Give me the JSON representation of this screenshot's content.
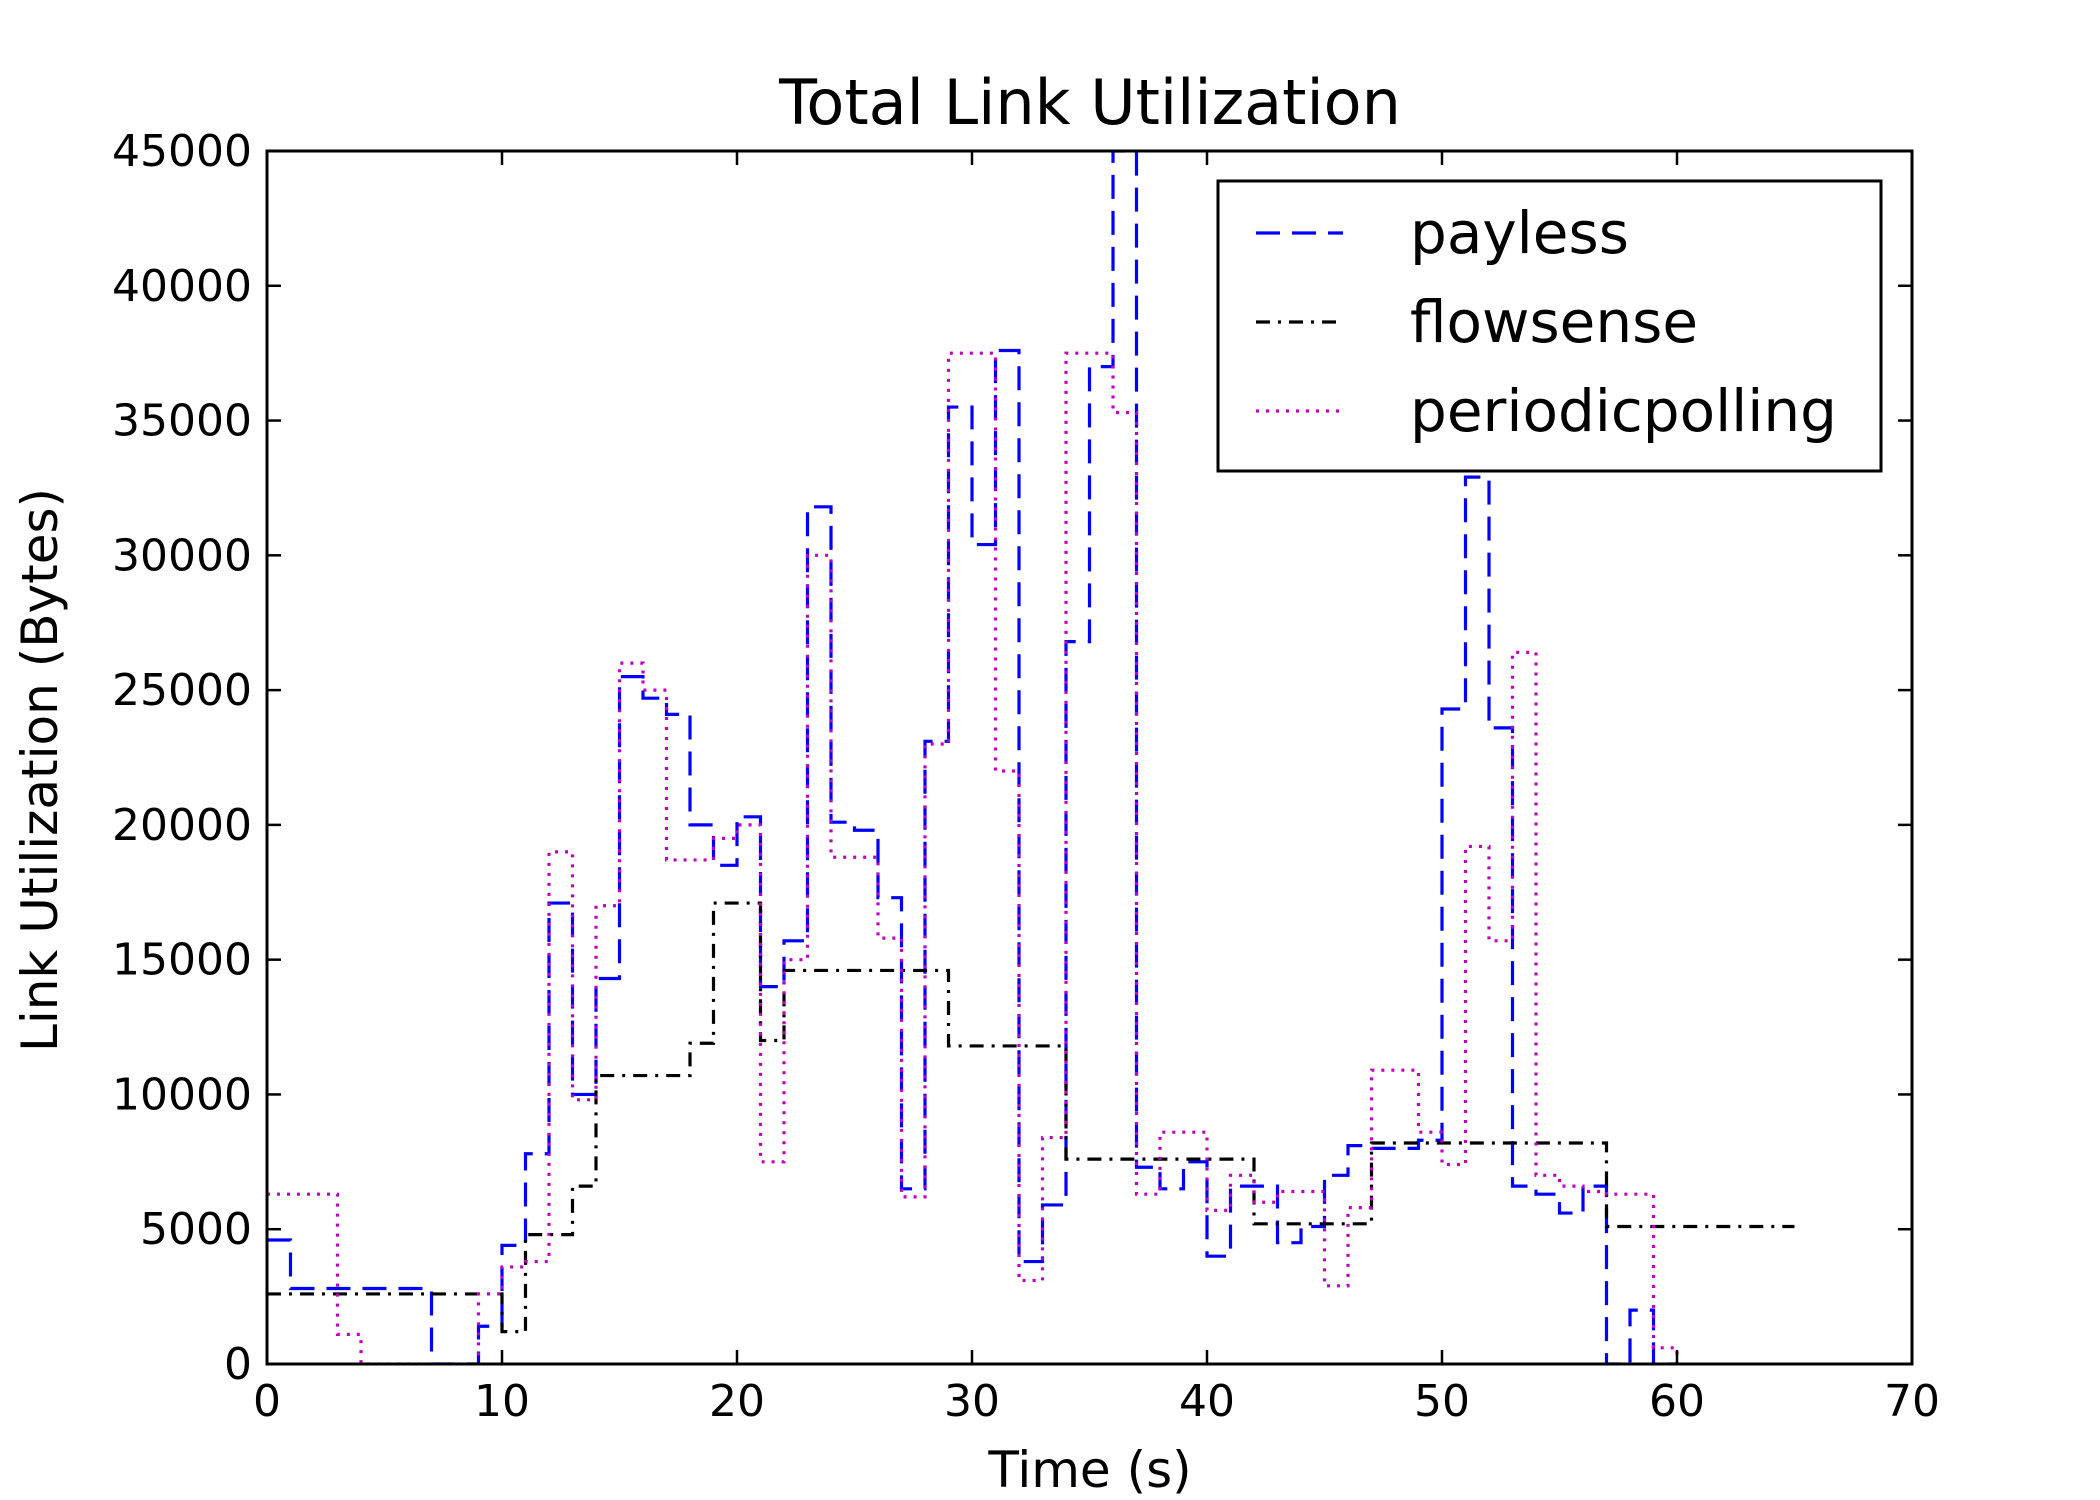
{
  "chart_data": {
    "type": "line",
    "title": "Total Link Utilization",
    "xlabel": "Time (s)",
    "ylabel": "Link Utilization (Bytes)",
    "xlim": [
      0,
      70
    ],
    "ylim": [
      0,
      45000
    ],
    "xticks": [
      0,
      10,
      20,
      30,
      40,
      50,
      60,
      70
    ],
    "yticks": [
      0,
      5000,
      10000,
      15000,
      20000,
      25000,
      30000,
      35000,
      40000,
      45000
    ],
    "grid": false,
    "legend_position": "top-right",
    "step": true,
    "series": [
      {
        "name": "payless",
        "color": "#0000ff",
        "dash": "dashed",
        "x": [
          0,
          1,
          2,
          3,
          4,
          5,
          6,
          7,
          8,
          9,
          10,
          11,
          12,
          13,
          14,
          15,
          16,
          17,
          18,
          19,
          20,
          21,
          22,
          23,
          24,
          25,
          26,
          27,
          28,
          29,
          30,
          31,
          32,
          33,
          34,
          35,
          36,
          37,
          38,
          39,
          40,
          41,
          42,
          43,
          44,
          45,
          46,
          47,
          48,
          49,
          50,
          51,
          52,
          53,
          54,
          55,
          56,
          57,
          58,
          59,
          60
        ],
        "y": [
          4600,
          2800,
          2800,
          2800,
          2800,
          2800,
          2800,
          0,
          0,
          1400,
          4400,
          7800,
          17100,
          10000,
          14300,
          25500,
          24700,
          24100,
          20000,
          18500,
          20300,
          14000,
          15700,
          31800,
          20100,
          19800,
          17300,
          6500,
          23100,
          35500,
          30400,
          37600,
          3800,
          5900,
          26800,
          37000,
          45000,
          7300,
          6500,
          7500,
          4000,
          6600,
          6600,
          4500,
          5100,
          7000,
          8100,
          8000,
          8000,
          8300,
          24300,
          32900,
          23600,
          6600,
          6300,
          5600,
          6600,
          0,
          2000,
          0,
          0
        ]
      },
      {
        "name": "flowsense",
        "color": "#000000",
        "dash": "dashdot",
        "x": [
          0,
          7,
          8,
          9,
          10,
          11,
          12,
          13,
          14,
          18,
          19,
          20,
          21,
          22,
          29,
          34,
          42,
          43,
          46,
          47,
          57,
          65
        ],
        "y": [
          2600,
          2600,
          2600,
          2600,
          1200,
          4800,
          4800,
          6600,
          10700,
          11900,
          17100,
          17100,
          12000,
          14600,
          11800,
          7600,
          5200,
          5200,
          5200,
          8200,
          5100,
          5100
        ]
      },
      {
        "name": "periodicpolling",
        "color": "#bf00bf",
        "dash": "dotted",
        "x": [
          0,
          1,
          2,
          3,
          4,
          5,
          6,
          7,
          8,
          9,
          10,
          11,
          12,
          13,
          14,
          15,
          16,
          17,
          18,
          19,
          20,
          21,
          22,
          23,
          24,
          25,
          26,
          27,
          28,
          29,
          30,
          31,
          32,
          33,
          34,
          35,
          36,
          37,
          38,
          39,
          40,
          41,
          42,
          43,
          44,
          45,
          46,
          47,
          48,
          49,
          50,
          51,
          52,
          53,
          54,
          55,
          56,
          57,
          58,
          59,
          60
        ],
        "y": [
          6300,
          6300,
          6300,
          1100,
          0,
          0,
          0,
          0,
          0,
          2600,
          3600,
          3800,
          19000,
          9800,
          17000,
          26000,
          25000,
          18700,
          18700,
          19500,
          20000,
          7500,
          15000,
          30000,
          18800,
          18800,
          15800,
          6200,
          23000,
          37500,
          37500,
          22000,
          3100,
          8400,
          37500,
          37500,
          35300,
          6300,
          8600,
          8600,
          5700,
          7000,
          6000,
          6400,
          6400,
          2900,
          5800,
          10900,
          10900,
          8600,
          7400,
          19200,
          15700,
          26400,
          7000,
          6600,
          6400,
          6300,
          6300,
          600,
          0
        ]
      }
    ]
  }
}
